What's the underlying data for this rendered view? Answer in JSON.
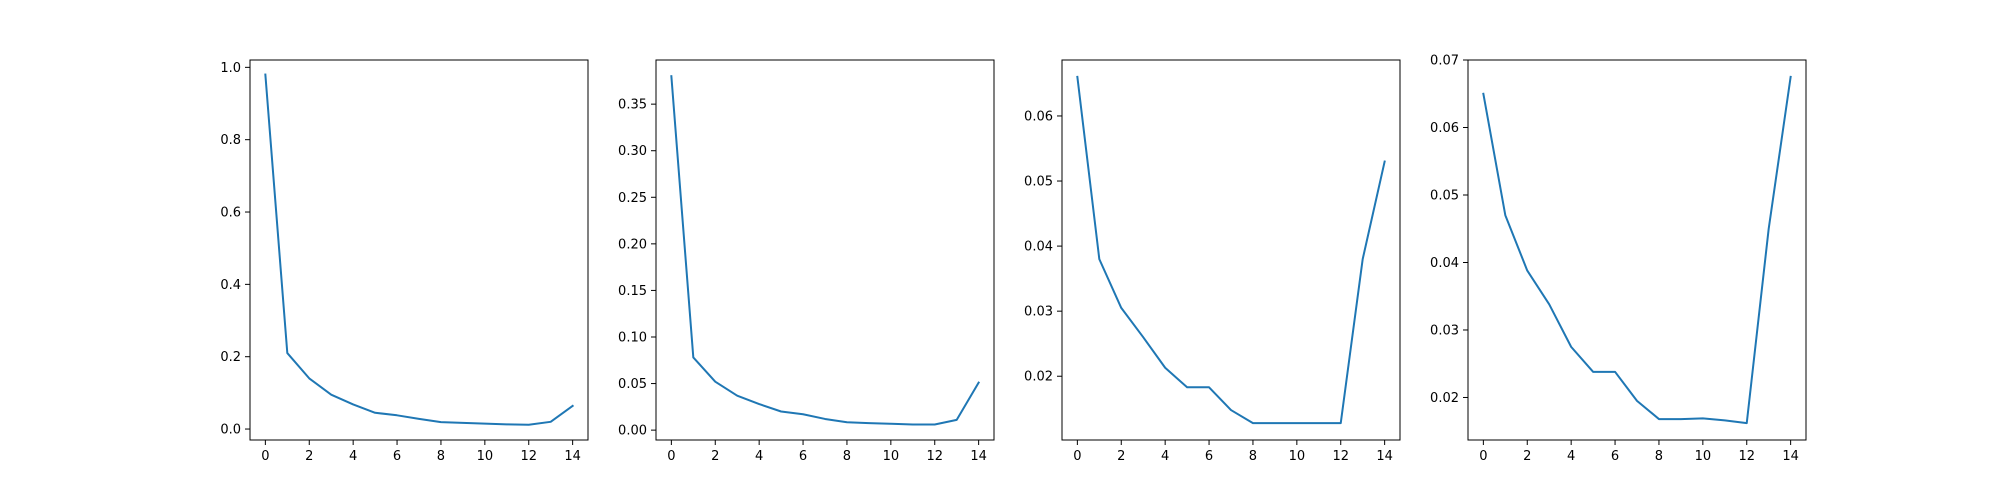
{
  "figure": {
    "background": "#ffffff",
    "line_color": "#1f77b4",
    "axis_color": "#000000"
  },
  "chart_data": [
    {
      "type": "line",
      "x": [
        0,
        1,
        2,
        3,
        4,
        5,
        6,
        7,
        8,
        9,
        10,
        11,
        12,
        13,
        14
      ],
      "series": [
        {
          "values": [
            0.98,
            0.21,
            0.14,
            0.095,
            0.068,
            0.045,
            0.038,
            0.028,
            0.019,
            0.017,
            0.015,
            0.013,
            0.012,
            0.02,
            0.064
          ]
        }
      ],
      "xlim": [
        -0.7,
        14.7
      ],
      "ylim": [
        -0.0303,
        1.0203
      ],
      "xticks": [
        0,
        2,
        4,
        6,
        8,
        10,
        12,
        14
      ],
      "xtick_labels": [
        "0",
        "2",
        "4",
        "6",
        "8",
        "10",
        "12",
        "14"
      ],
      "yticks": [
        0.0,
        0.2,
        0.4,
        0.6,
        0.8,
        1.0
      ],
      "ytick_labels": [
        "0.0",
        "0.2",
        "0.4",
        "0.6",
        "0.8",
        "1.0"
      ],
      "title": "",
      "xlabel": "",
      "ylabel": "",
      "grid": false
    },
    {
      "type": "line",
      "x": [
        0,
        1,
        2,
        3,
        4,
        5,
        6,
        7,
        8,
        9,
        10,
        11,
        12,
        13,
        14
      ],
      "series": [
        {
          "values": [
            0.38,
            0.078,
            0.052,
            0.037,
            0.028,
            0.02,
            0.017,
            0.012,
            0.0085,
            0.0075,
            0.0068,
            0.006,
            0.006,
            0.011,
            0.051
          ]
        }
      ],
      "xlim": [
        -0.7,
        14.7
      ],
      "ylim": [
        -0.0106,
        0.3974
      ],
      "xticks": [
        0,
        2,
        4,
        6,
        8,
        10,
        12,
        14
      ],
      "xtick_labels": [
        "0",
        "2",
        "4",
        "6",
        "8",
        "10",
        "12",
        "14"
      ],
      "yticks": [
        0.0,
        0.05,
        0.1,
        0.15,
        0.2,
        0.25,
        0.3,
        0.35
      ],
      "ytick_labels": [
        "0.00",
        "0.05",
        "0.10",
        "0.15",
        "0.20",
        "0.25",
        "0.30",
        "0.35"
      ],
      "title": "",
      "xlabel": "",
      "ylabel": "",
      "grid": false
    },
    {
      "type": "line",
      "x": [
        0,
        1,
        2,
        3,
        4,
        5,
        6,
        7,
        8,
        9,
        10,
        11,
        12,
        13,
        14
      ],
      "series": [
        {
          "values": [
            0.066,
            0.038,
            0.0305,
            0.026,
            0.0213,
            0.0183,
            0.0183,
            0.0148,
            0.0128,
            0.0128,
            0.0128,
            0.0128,
            0.0128,
            0.038,
            0.053
          ]
        }
      ],
      "xlim": [
        -0.7,
        14.7
      ],
      "ylim": [
        0.0102,
        0.0686
      ],
      "xticks": [
        0,
        2,
        4,
        6,
        8,
        10,
        12,
        14
      ],
      "xtick_labels": [
        "0",
        "2",
        "4",
        "6",
        "8",
        "10",
        "12",
        "14"
      ],
      "yticks": [
        0.02,
        0.03,
        0.04,
        0.05,
        0.06
      ],
      "ytick_labels": [
        "0.02",
        "0.03",
        "0.04",
        "0.05",
        "0.06"
      ],
      "title": "",
      "xlabel": "",
      "ylabel": "",
      "grid": false
    },
    {
      "type": "line",
      "x": [
        0,
        1,
        2,
        3,
        4,
        5,
        6,
        7,
        8,
        9,
        10,
        11,
        12,
        13,
        14
      ],
      "series": [
        {
          "values": [
            0.065,
            0.047,
            0.0388,
            0.0338,
            0.0275,
            0.0238,
            0.0238,
            0.0195,
            0.0168,
            0.0168,
            0.0169,
            0.0166,
            0.0162,
            0.045,
            0.0675
          ]
        }
      ],
      "xlim": [
        -0.7,
        14.7
      ],
      "ylim": [
        0.0137,
        0.07
      ],
      "xticks": [
        0,
        2,
        4,
        6,
        8,
        10,
        12,
        14
      ],
      "xtick_labels": [
        "0",
        "2",
        "4",
        "6",
        "8",
        "10",
        "12",
        "14"
      ],
      "yticks": [
        0.02,
        0.03,
        0.04,
        0.05,
        0.06,
        0.07
      ],
      "ytick_labels": [
        "0.02",
        "0.03",
        "0.04",
        "0.05",
        "0.06",
        "0.07"
      ],
      "title": "",
      "xlabel": "",
      "ylabel": "",
      "grid": false
    }
  ]
}
